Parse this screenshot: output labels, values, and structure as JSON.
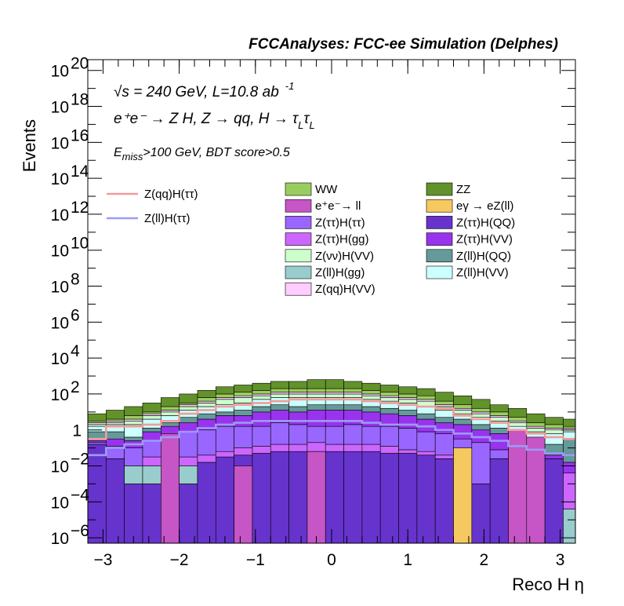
{
  "header": "FCCAnalyses: FCC-ee Simulation (Delphes)",
  "annotations": {
    "energy": "√s = 240 GeV, L=10.8 ab",
    "energy_sup": "-1",
    "process": "e⁺e⁻ → Z H, Z → qq, H → τ",
    "process_sub": "L",
    "process_tail": "τ",
    "process_tail_sub": "L",
    "cut_prefix": "E",
    "cut_sub": "miss",
    "cut_rest": ">100 GeV, BDT score>0.5"
  },
  "chart_data": {
    "type": "bar",
    "subtype": "stacked-histogram-with-lines",
    "xlabel": "Reco H η",
    "ylabel": "Events",
    "xlim": [
      -3.2,
      3.2
    ],
    "ylim_log10": [
      -6.3,
      20.6
    ],
    "y_scale": "log",
    "x_ticks": [
      {
        "v": -3,
        "label": "−3"
      },
      {
        "v": -2,
        "label": "−2"
      },
      {
        "v": -1,
        "label": "−1"
      },
      {
        "v": 0,
        "label": "0"
      },
      {
        "v": 1,
        "label": "1"
      },
      {
        "v": 2,
        "label": "2"
      },
      {
        "v": 3,
        "label": "3"
      }
    ],
    "y_ticks": [
      {
        "exp": -6,
        "label": "10",
        "sup": "−6"
      },
      {
        "exp": -4,
        "label": "10",
        "sup": "−4"
      },
      {
        "exp": -2,
        "label": "10",
        "sup": "−2"
      },
      {
        "exp": 0,
        "label": "1",
        "sup": ""
      },
      {
        "exp": 2,
        "label": "10",
        "sup": "2"
      },
      {
        "exp": 4,
        "label": "10",
        "sup": "4"
      },
      {
        "exp": 6,
        "label": "10",
        "sup": "6"
      },
      {
        "exp": 8,
        "label": "10",
        "sup": "8"
      },
      {
        "exp": 10,
        "label": "10",
        "sup": "10"
      },
      {
        "exp": 12,
        "label": "10",
        "sup": "12"
      },
      {
        "exp": 14,
        "label": "10",
        "sup": "14"
      },
      {
        "exp": 16,
        "label": "10",
        "sup": "16"
      },
      {
        "exp": 18,
        "label": "10",
        "sup": "18"
      },
      {
        "exp": 20,
        "label": "10",
        "sup": "20"
      }
    ],
    "bin_edges": [
      -3.2,
      -2.96,
      -2.72,
      -2.48,
      -2.24,
      -2.0,
      -1.76,
      -1.52,
      -1.28,
      -1.04,
      -0.8,
      -0.56,
      -0.32,
      -0.08,
      0.16,
      0.4,
      0.64,
      0.88,
      1.12,
      1.36,
      1.6,
      1.84,
      2.08,
      2.32,
      2.56,
      2.8,
      3.04,
      3.28
    ],
    "stack_boundaries_log10": {
      "description": "cumulative log10(events) of stack boundaries, bottom to top, per bin",
      "layers": [
        {
          "name": "Z(ττ)H(QQ)",
          "top": [
            -0.8,
            -1.6,
            -3.0,
            -3.0,
            -3.0,
            -3.0,
            -1.8,
            -1.5,
            -1.4,
            -1.3,
            -1.2,
            -1.2,
            -1.2,
            -1.2,
            -1.2,
            -1.2,
            -1.3,
            -1.3,
            -1.4,
            -1.6,
            -1.2,
            -3.0,
            -1.6,
            -3.0,
            -3.0,
            -1.6,
            -6.5
          ]
        },
        {
          "name": "Z(ll)H(gg)",
          "top": [
            -0.8,
            -1.6,
            -2.0,
            -2.0,
            -2.0,
            -2.0,
            -1.8,
            -1.5,
            -1.4,
            -1.3,
            -1.2,
            -1.2,
            -1.2,
            -1.2,
            -1.2,
            -1.2,
            -1.3,
            -1.3,
            -1.4,
            -1.6,
            -1.2,
            -3.0,
            -1.6,
            -3.0,
            -3.0,
            -1.6,
            -4.4
          ]
        },
        {
          "name": "Z(ττ)H(gg)",
          "top": [
            -0.8,
            -1.6,
            -2.0,
            -1.5,
            -1.6,
            -1.5,
            -1.4,
            -1.2,
            -1.0,
            -0.9,
            -0.8,
            -0.8,
            -0.7,
            -0.8,
            -0.8,
            -0.8,
            -0.9,
            -1.1,
            -1.2,
            -1.4,
            -1.2,
            -3.0,
            -1.6,
            -1.1,
            -1.5,
            -1.6,
            -2.4
          ]
        },
        {
          "name": "Z(ττ)H(ττ)",
          "top": [
            -0.7,
            -0.9,
            -1.0,
            -0.6,
            -0.3,
            -0.1,
            0.0,
            0.2,
            0.2,
            0.2,
            0.4,
            0.3,
            0.2,
            0.2,
            0.3,
            0.2,
            0.2,
            0.1,
            -0.1,
            -0.2,
            -0.5,
            -0.7,
            -1.1,
            -1.0,
            -1.5,
            -1.6,
            -2.4
          ]
        },
        {
          "name": "Z(ττ)H(VV)",
          "top": [
            -0.6,
            -0.5,
            -0.6,
            -0.1,
            0.2,
            0.4,
            0.6,
            0.8,
            0.8,
            1.0,
            1.1,
            1.0,
            1.1,
            1.1,
            1.1,
            1.0,
            0.9,
            0.8,
            0.6,
            0.4,
            0.3,
            0.0,
            -0.2,
            -0.5,
            -1.3,
            -1.4,
            -1.8
          ]
        },
        {
          "name": "Z(ll)H(QQ)",
          "top": [
            -0.1,
            -0.1,
            -0.4,
            0.1,
            0.4,
            0.7,
            0.9,
            1.0,
            1.1,
            1.3,
            1.4,
            1.3,
            1.4,
            1.4,
            1.4,
            1.3,
            1.2,
            1.1,
            0.9,
            0.7,
            0.6,
            0.3,
            0.1,
            -0.3,
            -0.8,
            -0.8,
            -0.5
          ]
        },
        {
          "name": "Z(ll)H(VV)",
          "top": [
            0.2,
            0.3,
            0.3,
            0.6,
            0.8,
            1.1,
            1.3,
            1.4,
            1.5,
            1.7,
            1.8,
            1.8,
            1.8,
            1.8,
            1.8,
            1.7,
            1.6,
            1.5,
            1.3,
            1.1,
            0.9,
            0.7,
            0.5,
            0.2,
            -0.1,
            -0.2,
            -0.1
          ]
        },
        {
          "name": "Z(νν)H(VV)",
          "top": [
            0.3,
            0.4,
            0.5,
            0.8,
            1.0,
            1.3,
            1.5,
            1.7,
            1.8,
            1.9,
            2.0,
            2.0,
            2.0,
            2.0,
            2.0,
            1.9,
            1.8,
            1.7,
            1.6,
            1.3,
            1.1,
            0.9,
            0.7,
            0.4,
            0.1,
            0.0,
            0.0
          ]
        },
        {
          "name": "Z(qq)H(VV)",
          "top": [
            0.4,
            0.5,
            0.6,
            0.9,
            1.1,
            1.4,
            1.6,
            1.8,
            1.9,
            2.0,
            2.1,
            2.1,
            2.1,
            2.1,
            2.1,
            2.0,
            1.9,
            1.8,
            1.7,
            1.4,
            1.2,
            1.0,
            0.8,
            0.5,
            0.2,
            0.1,
            0.1
          ]
        },
        {
          "name": "WW",
          "top": [
            0.5,
            0.6,
            0.8,
            1.0,
            1.3,
            1.5,
            1.8,
            2.0,
            2.1,
            2.2,
            2.3,
            2.3,
            2.3,
            2.3,
            2.3,
            2.2,
            2.1,
            2.0,
            1.9,
            1.6,
            1.4,
            1.2,
            1.0,
            0.7,
            0.4,
            0.3,
            0.2
          ]
        },
        {
          "name": "ZZ",
          "top": [
            0.9,
            1.1,
            1.3,
            1.5,
            1.8,
            2.0,
            2.2,
            2.4,
            2.5,
            2.6,
            2.7,
            2.7,
            2.8,
            2.8,
            2.7,
            2.6,
            2.5,
            2.4,
            2.3,
            2.1,
            1.9,
            1.7,
            1.4,
            1.2,
            0.9,
            0.7,
            0.6
          ]
        }
      ],
      "bin_overrides": [
        {
          "bin": 4,
          "name": "e⁺e⁻→ ll",
          "bottom": -6.5,
          "top": -0.2
        },
        {
          "bin": 8,
          "name": "e⁺e⁻→ ll",
          "bottom": -6.5,
          "top": -2.0
        },
        {
          "bin": 12,
          "name": "e⁺e⁻→ ll",
          "bottom": -6.5,
          "top": -1.2
        },
        {
          "bin": 20,
          "name": "eγ → eZ(ll)",
          "bottom": -6.5,
          "top": -1.0
        },
        {
          "bin": 23,
          "name": "e⁺e⁻→ ll",
          "bottom": -6.5,
          "top": 0.0
        },
        {
          "bin": 24,
          "name": "e⁺e⁻→ ll",
          "bottom": -6.5,
          "top": -0.4
        }
      ]
    },
    "line_series": [
      {
        "name": "Z(qq)H(ττ)",
        "color": "#f59a9a",
        "log10": [
          -0.5,
          0.2,
          0.2,
          0.3,
          0.5,
          0.9,
          1.1,
          1.3,
          1.4,
          1.5,
          1.6,
          1.7,
          1.7,
          1.7,
          1.7,
          1.6,
          1.5,
          1.4,
          1.3,
          1.2,
          0.8,
          0.6,
          0.4,
          0.0,
          -0.2,
          -0.4,
          -0.5
        ]
      },
      {
        "name": "Z(ll)H(ττ)",
        "color": "#9b9bf5",
        "log10": [
          -1.4,
          -1.0,
          -0.8,
          -0.6,
          -0.4,
          -0.1,
          0.1,
          0.3,
          0.4,
          0.5,
          0.5,
          0.5,
          0.5,
          0.5,
          0.5,
          0.4,
          0.3,
          0.3,
          0.2,
          0.0,
          -0.2,
          -0.4,
          -0.6,
          -0.9,
          -1.1,
          -1.3,
          -1.4
        ]
      }
    ],
    "legend": {
      "lines": [
        {
          "label": "Z(qq)H(ττ)",
          "color": "#f59a9a"
        },
        {
          "label": "Z(ll)H(ττ)",
          "color": "#9b9bf5"
        }
      ],
      "boxes": [
        {
          "label": "WW",
          "color": "#9acd5f"
        },
        {
          "label": "ZZ",
          "color": "#62922a"
        },
        {
          "label": "e⁺e⁻→ ll",
          "color": "#c655c6"
        },
        {
          "label": "eγ → eZ(ll)",
          "color": "#f6c860"
        },
        {
          "label": "Z(ττ)H(ττ)",
          "color": "#9966ff"
        },
        {
          "label": "Z(ττ)H(QQ)",
          "color": "#6633cc"
        },
        {
          "label": "Z(ττ)H(gg)",
          "color": "#cc66ff"
        },
        {
          "label": "Z(ττ)H(VV)",
          "color": "#9933ee"
        },
        {
          "label": "Z(νν)H(VV)",
          "color": "#ccffcc"
        },
        {
          "label": "Z(ll)H(QQ)",
          "color": "#669999"
        },
        {
          "label": "Z(ll)H(gg)",
          "color": "#99cccc"
        },
        {
          "label": "Z(ll)H(VV)",
          "color": "#ccffff"
        },
        {
          "label": "Z(qq)H(VV)",
          "color": "#ffccff"
        }
      ]
    },
    "layer_colors": {
      "Z(ττ)H(QQ)": "#6633cc",
      "Z(ll)H(gg)": "#99cccc",
      "Z(ττ)H(gg)": "#cc66ff",
      "Z(ττ)H(ττ)": "#9966ff",
      "Z(ττ)H(VV)": "#9933ee",
      "Z(ll)H(QQ)": "#669999",
      "Z(ll)H(VV)": "#ccffff",
      "Z(νν)H(VV)": "#ccffcc",
      "Z(qq)H(VV)": "#ffccff",
      "WW": "#9acd5f",
      "ZZ": "#62922a",
      "e⁺e⁻→ ll": "#c655c6",
      "eγ → eZ(ll)": "#f6c860"
    }
  }
}
